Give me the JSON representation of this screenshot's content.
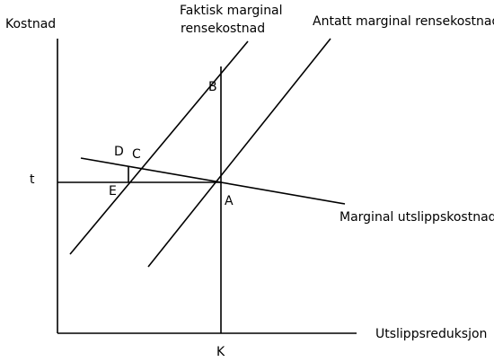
{
  "axes": {
    "y_label": "Kostnad",
    "x_label": "Utslippsreduksjon",
    "t_label": "t",
    "k_label": "K"
  },
  "curves": {
    "actual_mc_line1": "Faktisk marginal",
    "actual_mc_line2": "rensekostnad",
    "assumed_mc": "Antatt marginal rensekostnad",
    "marginal_emission_cost": "Marginal utslippskostnad"
  },
  "points": {
    "a": "A",
    "b": "B",
    "c": "C",
    "d": "D",
    "e": "E"
  }
}
